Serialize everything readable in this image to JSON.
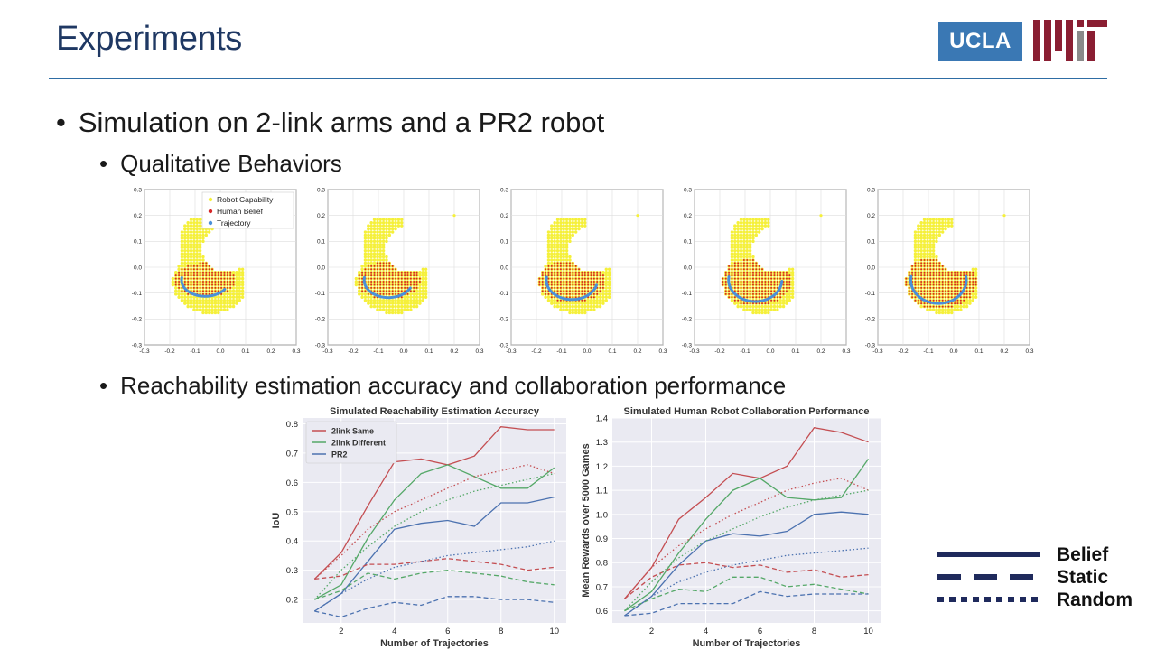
{
  "header": {
    "title": "Experiments",
    "logo_ucla": "UCLA",
    "logo_mit": "MIT"
  },
  "bullets": {
    "main": "Simulation on 2-link arms and a PR2 robot",
    "sub1": "Qualitative Behaviors",
    "sub2": "Reachability estimation accuracy and collaboration performance"
  },
  "qualitative": {
    "legend": [
      "Robot Capability",
      "Human Belief",
      "Trajectory"
    ],
    "colors": {
      "capability": "#f5f03a",
      "belief": "#d62728",
      "trajectory": "#4a90d9"
    },
    "axis_ticks": [
      "-0.3",
      "-0.2",
      "-0.1",
      "0.0",
      "0.1",
      "0.2",
      "0.3"
    ]
  },
  "line_styles": {
    "solid": "Belief",
    "dashed": "Static",
    "dotted": "Random"
  },
  "chart_data": [
    {
      "type": "line",
      "title": "Simulated Reachability Estimation Accuracy",
      "xlabel": "Number of Trajectories",
      "ylabel": "IoU",
      "x": [
        1,
        2,
        3,
        4,
        5,
        6,
        7,
        8,
        9,
        10
      ],
      "xticks": [
        2,
        4,
        6,
        8,
        10
      ],
      "ylim": [
        0.12,
        0.82
      ],
      "yticks": [
        0.2,
        0.3,
        0.4,
        0.5,
        0.6,
        0.7,
        0.8
      ],
      "ytick_labels": [
        "0.2",
        "0.3",
        "0.4",
        "0.5",
        "0.6",
        "0.7",
        "0.8"
      ],
      "legend": [
        "2link Same",
        "2link Different",
        "PR2"
      ],
      "legend_position": "top-left",
      "grid": true,
      "series": [
        {
          "name": "2link Same",
          "style": "solid",
          "color": "#c44e52",
          "values": [
            0.27,
            0.36,
            0.52,
            0.67,
            0.68,
            0.66,
            0.69,
            0.79,
            0.78,
            0.78
          ]
        },
        {
          "name": "2link Different",
          "style": "solid",
          "color": "#55a868",
          "values": [
            0.2,
            0.25,
            0.41,
            0.54,
            0.63,
            0.66,
            0.62,
            0.58,
            0.58,
            0.65
          ]
        },
        {
          "name": "PR2",
          "style": "solid",
          "color": "#4c72b0",
          "values": [
            0.16,
            0.22,
            0.33,
            0.44,
            0.46,
            0.47,
            0.45,
            0.53,
            0.53,
            0.55
          ]
        },
        {
          "style": "dashed",
          "color": "#c44e52",
          "values": [
            0.27,
            0.28,
            0.32,
            0.32,
            0.33,
            0.34,
            0.33,
            0.32,
            0.3,
            0.31
          ]
        },
        {
          "style": "dashed",
          "color": "#55a868",
          "values": [
            0.2,
            0.23,
            0.29,
            0.27,
            0.29,
            0.3,
            0.29,
            0.28,
            0.26,
            0.25
          ]
        },
        {
          "style": "dashed",
          "color": "#4c72b0",
          "values": [
            0.16,
            0.14,
            0.17,
            0.19,
            0.18,
            0.21,
            0.21,
            0.2,
            0.2,
            0.19
          ]
        },
        {
          "style": "dotted",
          "color": "#c44e52",
          "values": [
            0.27,
            0.35,
            0.44,
            0.5,
            0.54,
            0.58,
            0.62,
            0.64,
            0.66,
            0.63
          ]
        },
        {
          "style": "dotted",
          "color": "#55a868",
          "values": [
            0.2,
            0.3,
            0.38,
            0.45,
            0.5,
            0.54,
            0.57,
            0.59,
            0.61,
            0.63
          ]
        },
        {
          "style": "dotted",
          "color": "#4c72b0",
          "values": [
            0.16,
            0.22,
            0.27,
            0.31,
            0.33,
            0.35,
            0.36,
            0.37,
            0.38,
            0.4
          ]
        }
      ]
    },
    {
      "type": "line",
      "title": "Simulated Human Robot Collaboration Performance",
      "xlabel": "Number of Trajectories",
      "ylabel": "Mean Rewards over 5000 Games",
      "x": [
        1,
        2,
        3,
        4,
        5,
        6,
        7,
        8,
        9,
        10
      ],
      "xticks": [
        2,
        4,
        6,
        8,
        10
      ],
      "ylim": [
        0.55,
        1.4
      ],
      "yticks": [
        0.6,
        0.7,
        0.8,
        0.9,
        1.0,
        1.1,
        1.2,
        1.3,
        1.4
      ],
      "ytick_labels": [
        "0.6",
        "0.7",
        "0.8",
        "0.9",
        "1.0",
        "1.1",
        "1.2",
        "1.3",
        "1.4"
      ],
      "grid": true,
      "series": [
        {
          "style": "solid",
          "color": "#c44e52",
          "values": [
            0.65,
            0.78,
            0.98,
            1.07,
            1.17,
            1.15,
            1.2,
            1.36,
            1.34,
            1.3
          ]
        },
        {
          "style": "solid",
          "color": "#55a868",
          "values": [
            0.6,
            0.68,
            0.84,
            0.98,
            1.1,
            1.15,
            1.07,
            1.06,
            1.07,
            1.23
          ]
        },
        {
          "style": "solid",
          "color": "#4c72b0",
          "values": [
            0.58,
            0.66,
            0.79,
            0.89,
            0.92,
            0.91,
            0.93,
            1.0,
            1.01,
            1.0
          ]
        },
        {
          "style": "dashed",
          "color": "#c44e52",
          "values": [
            0.65,
            0.74,
            0.79,
            0.8,
            0.78,
            0.79,
            0.76,
            0.77,
            0.74,
            0.75
          ]
        },
        {
          "style": "dashed",
          "color": "#55a868",
          "values": [
            0.6,
            0.65,
            0.69,
            0.68,
            0.74,
            0.74,
            0.7,
            0.71,
            0.69,
            0.67
          ]
        },
        {
          "style": "dashed",
          "color": "#4c72b0",
          "values": [
            0.58,
            0.59,
            0.63,
            0.63,
            0.63,
            0.68,
            0.66,
            0.67,
            0.67,
            0.67
          ]
        },
        {
          "style": "dotted",
          "color": "#c44e52",
          "values": [
            0.65,
            0.78,
            0.87,
            0.94,
            1.0,
            1.05,
            1.1,
            1.13,
            1.15,
            1.1
          ]
        },
        {
          "style": "dotted",
          "color": "#55a868",
          "values": [
            0.6,
            0.72,
            0.82,
            0.89,
            0.94,
            0.99,
            1.03,
            1.06,
            1.08,
            1.1
          ]
        },
        {
          "style": "dotted",
          "color": "#4c72b0",
          "values": [
            0.58,
            0.66,
            0.72,
            0.76,
            0.79,
            0.81,
            0.83,
            0.84,
            0.85,
            0.86
          ]
        }
      ]
    }
  ]
}
